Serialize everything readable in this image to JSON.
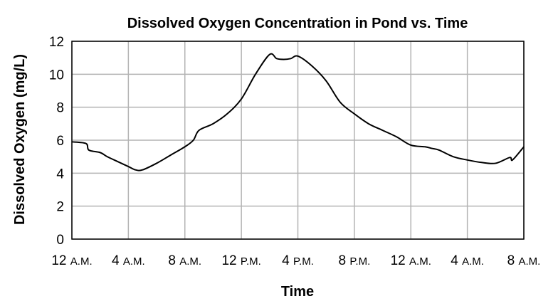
{
  "chart_data": {
    "type": "line",
    "title": "Dissolved Oxygen Concentration in Pond vs. Time",
    "xlabel": "Time",
    "ylabel": "Dissolved Oxygen (mg/L)",
    "ylim": [
      0,
      12
    ],
    "xlim": [
      0,
      32
    ],
    "grid": true,
    "x_unit": "hours since 12 A.M. (day 1)",
    "y_ticks": [
      "0",
      "2",
      "4",
      "6",
      "8",
      "10",
      "12"
    ],
    "x_ticks": [
      {
        "x": 0,
        "num": "12",
        "suffix": "A.M."
      },
      {
        "x": 4,
        "num": "4",
        "suffix": "A.M."
      },
      {
        "x": 8,
        "num": "8",
        "suffix": "A.M."
      },
      {
        "x": 12,
        "num": "12",
        "suffix": "P.M."
      },
      {
        "x": 16,
        "num": "4",
        "suffix": "P.M."
      },
      {
        "x": 20,
        "num": "8",
        "suffix": "P.M."
      },
      {
        "x": 24,
        "num": "12",
        "suffix": "A.M."
      },
      {
        "x": 28,
        "num": "4",
        "suffix": "A.M."
      },
      {
        "x": 32,
        "num": "8",
        "suffix": "A.M."
      }
    ],
    "series": [
      {
        "points": [
          [
            0,
            5.9
          ],
          [
            1,
            5.8
          ],
          [
            1.2,
            5.4
          ],
          [
            2,
            5.25
          ],
          [
            2.5,
            5.0
          ],
          [
            3,
            4.8
          ],
          [
            4,
            4.4
          ],
          [
            4.5,
            4.2
          ],
          [
            5,
            4.2
          ],
          [
            6,
            4.6
          ],
          [
            7,
            5.1
          ],
          [
            8,
            5.6
          ],
          [
            8.6,
            6.0
          ],
          [
            9,
            6.6
          ],
          [
            10,
            7.0
          ],
          [
            11,
            7.6
          ],
          [
            12,
            8.5
          ],
          [
            13,
            10.0
          ],
          [
            14,
            11.2
          ],
          [
            14.5,
            10.95
          ],
          [
            15,
            10.9
          ],
          [
            15.5,
            10.95
          ],
          [
            16,
            11.1
          ],
          [
            17,
            10.5
          ],
          [
            18,
            9.6
          ],
          [
            19,
            8.3
          ],
          [
            20,
            7.6
          ],
          [
            21,
            7.0
          ],
          [
            22,
            6.6
          ],
          [
            23,
            6.2
          ],
          [
            24,
            5.7
          ],
          [
            25,
            5.6
          ],
          [
            25.5,
            5.5
          ],
          [
            26,
            5.4
          ],
          [
            27,
            5.0
          ],
          [
            28,
            4.8
          ],
          [
            29,
            4.65
          ],
          [
            30,
            4.6
          ],
          [
            31,
            4.95
          ],
          [
            31.2,
            4.8
          ],
          [
            32,
            5.6
          ]
        ]
      }
    ]
  }
}
